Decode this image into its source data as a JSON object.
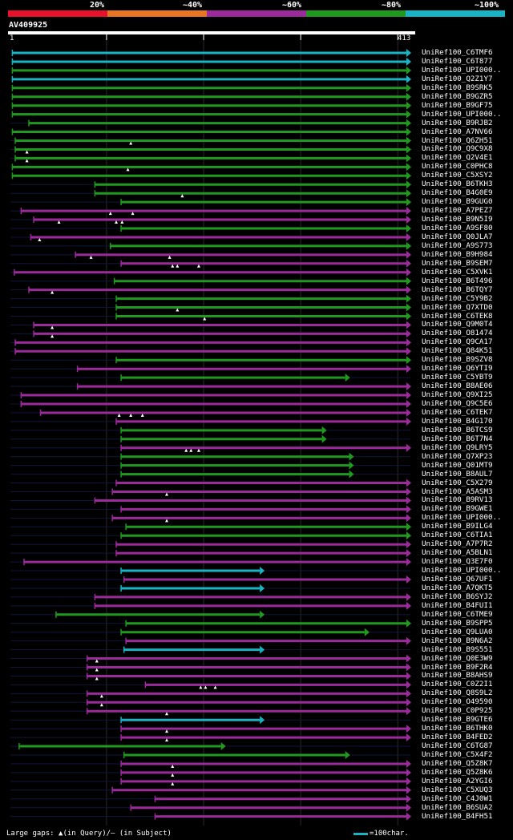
{
  "legend": {
    "labels": [
      "20%",
      "~40%",
      "~60%",
      "~80%",
      "~100%"
    ],
    "colors": [
      "#e8102a",
      "#e87424",
      "#9b2a9b",
      "#1f9a1f",
      "#18b4c4"
    ]
  },
  "query": {
    "title": "AV409925",
    "start": "1",
    "end": "413",
    "length": 413
  },
  "colors": {
    "cyan": "#18b4c4",
    "green": "#1f9a1f",
    "purple": "#9b2a9b",
    "gap": "#ffffff"
  },
  "footer": {
    "gaps_text": "Large gaps: ▲(in Query)/— (in Subject)",
    "scale_text": "=100char."
  },
  "hits": [
    {
      "name": "UniRef100_C6TMF6",
      "color": "cyan",
      "start": 3,
      "end": 413,
      "gaps": []
    },
    {
      "name": "UniRef100_C6T877",
      "color": "cyan",
      "start": 3,
      "end": 413,
      "gaps": []
    },
    {
      "name": "UniRef100_UPI000..",
      "color": "green",
      "start": 3,
      "end": 413,
      "gaps": []
    },
    {
      "name": "UniRef100_Q2Z1Y7",
      "color": "cyan",
      "start": 3,
      "end": 413,
      "gaps": []
    },
    {
      "name": "UniRef100_B9SRK5",
      "color": "green",
      "start": 3,
      "end": 413,
      "gaps": []
    },
    {
      "name": "UniRef100_B9GZR5",
      "color": "green",
      "start": 3,
      "end": 413,
      "gaps": []
    },
    {
      "name": "UniRef100_B9GF75",
      "color": "green",
      "start": 3,
      "end": 413,
      "gaps": []
    },
    {
      "name": "UniRef100_UPI000..",
      "color": "green",
      "start": 3,
      "end": 413,
      "gaps": []
    },
    {
      "name": "UniRef100_B9RJB2",
      "color": "green",
      "start": 20,
      "end": 413,
      "gaps": []
    },
    {
      "name": "UniRef100_A7NV66",
      "color": "green",
      "start": 3,
      "end": 413,
      "gaps": []
    },
    {
      "name": "UniRef100_Q6ZH51",
      "color": "green",
      "start": 6,
      "end": 413,
      "gaps": [
        125
      ]
    },
    {
      "name": "UniRef100_Q9C9X8",
      "color": "green",
      "start": 6,
      "end": 413,
      "gaps": [
        18
      ]
    },
    {
      "name": "UniRef100_Q2V4E1",
      "color": "green",
      "start": 6,
      "end": 413,
      "gaps": [
        18
      ]
    },
    {
      "name": "UniRef100_C0PHC8",
      "color": "green",
      "start": 3,
      "end": 413,
      "gaps": [
        122
      ]
    },
    {
      "name": "UniRef100_C5XSY2",
      "color": "green",
      "start": 3,
      "end": 413,
      "gaps": []
    },
    {
      "name": "UniRef100_B6TKH3",
      "color": "green",
      "start": 88,
      "end": 413,
      "gaps": []
    },
    {
      "name": "UniRef100_B4G0E9",
      "color": "green",
      "start": 88,
      "end": 413,
      "gaps": [
        178
      ]
    },
    {
      "name": "UniRef100_B9GUG0",
      "color": "green",
      "start": 115,
      "end": 413,
      "gaps": []
    },
    {
      "name": "UniRef100_A7PEZ7",
      "color": "purple",
      "start": 12,
      "end": 413,
      "gaps": [
        104,
        127
      ]
    },
    {
      "name": "UniRef100_B9N5I9",
      "color": "purple",
      "start": 25,
      "end": 413,
      "gaps": [
        51,
        110,
        116
      ]
    },
    {
      "name": "UniRef100_A9SF80",
      "color": "green",
      "start": 115,
      "end": 413,
      "gaps": []
    },
    {
      "name": "UniRef100_Q0JLA7",
      "color": "purple",
      "start": 22,
      "end": 413,
      "gaps": [
        31
      ]
    },
    {
      "name": "UniRef100_A9S773",
      "color": "green",
      "start": 104,
      "end": 413,
      "gaps": []
    },
    {
      "name": "UniRef100_B9H984",
      "color": "purple",
      "start": 68,
      "end": 413,
      "gaps": [
        84,
        165
      ]
    },
    {
      "name": "UniRef100_B9SEM7",
      "color": "purple",
      "start": 115,
      "end": 413,
      "gaps": [
        168,
        173,
        195
      ]
    },
    {
      "name": "UniRef100_C5XVK1",
      "color": "purple",
      "start": 5,
      "end": 413,
      "gaps": []
    },
    {
      "name": "UniRef100_B6T496",
      "color": "green",
      "start": 108,
      "end": 413,
      "gaps": []
    },
    {
      "name": "UniRef100_B6TQY7",
      "color": "purple",
      "start": 20,
      "end": 413,
      "gaps": [
        44
      ]
    },
    {
      "name": "UniRef100_C5Y9B2",
      "color": "green",
      "start": 110,
      "end": 413,
      "gaps": []
    },
    {
      "name": "UniRef100_Q7XTD0",
      "color": "green",
      "start": 110,
      "end": 413,
      "gaps": [
        173
      ]
    },
    {
      "name": "UniRef100_C6TEK8",
      "color": "green",
      "start": 110,
      "end": 413,
      "gaps": [
        201
      ]
    },
    {
      "name": "UniRef100_Q9M0T4",
      "color": "purple",
      "start": 25,
      "end": 413,
      "gaps": [
        44
      ]
    },
    {
      "name": "UniRef100_O81474",
      "color": "purple",
      "start": 25,
      "end": 413,
      "gaps": [
        44
      ]
    },
    {
      "name": "UniRef100_Q9CA17",
      "color": "purple",
      "start": 6,
      "end": 413,
      "gaps": []
    },
    {
      "name": "UniRef100_Q84K51",
      "color": "purple",
      "start": 6,
      "end": 413,
      "gaps": []
    },
    {
      "name": "UniRef100_B9SZV8",
      "color": "green",
      "start": 110,
      "end": 413,
      "gaps": []
    },
    {
      "name": "UniRef100_Q6YTI9",
      "color": "purple",
      "start": 70,
      "end": 413,
      "gaps": []
    },
    {
      "name": "UniRef100_C5YBT9",
      "color": "green",
      "start": 115,
      "end": 350,
      "gaps": []
    },
    {
      "name": "UniRef100_B8AE06",
      "color": "purple",
      "start": 70,
      "end": 413,
      "gaps": []
    },
    {
      "name": "UniRef100_Q9XI25",
      "color": "purple",
      "start": 12,
      "end": 413,
      "gaps": []
    },
    {
      "name": "UniRef100_Q9C5E6",
      "color": "purple",
      "start": 12,
      "end": 413,
      "gaps": []
    },
    {
      "name": "UniRef100_C6TEK7",
      "color": "purple",
      "start": 32,
      "end": 413,
      "gaps": [
        113,
        125,
        137
      ]
    },
    {
      "name": "UniRef100_B4G170",
      "color": "purple",
      "start": 110,
      "end": 413,
      "gaps": []
    },
    {
      "name": "UniRef100_B6TCS9",
      "color": "green",
      "start": 115,
      "end": 326,
      "gaps": []
    },
    {
      "name": "UniRef100_B6T7N4",
      "color": "green",
      "start": 115,
      "end": 326,
      "gaps": []
    },
    {
      "name": "UniRef100_Q9LRY5",
      "color": "purple",
      "start": 115,
      "end": 413,
      "gaps": [
        182,
        187,
        195
      ]
    },
    {
      "name": "UniRef100_Q7XP23",
      "color": "green",
      "start": 115,
      "end": 354,
      "gaps": []
    },
    {
      "name": "UniRef100_Q01MT9",
      "color": "green",
      "start": 115,
      "end": 354,
      "gaps": []
    },
    {
      "name": "UniRef100_B8AUL7",
      "color": "green",
      "start": 115,
      "end": 354,
      "gaps": []
    },
    {
      "name": "UniRef100_C5X279",
      "color": "purple",
      "start": 110,
      "end": 413,
      "gaps": []
    },
    {
      "name": "UniRef100_A5ASM3",
      "color": "purple",
      "start": 106,
      "end": 413,
      "gaps": [
        162
      ]
    },
    {
      "name": "UniRef100_B9RV13",
      "color": "purple",
      "start": 88,
      "end": 413,
      "gaps": []
    },
    {
      "name": "UniRef100_B9GWE1",
      "color": "purple",
      "start": 115,
      "end": 413,
      "gaps": []
    },
    {
      "name": "UniRef100_UPI000..",
      "color": "purple",
      "start": 106,
      "end": 413,
      "gaps": [
        162
      ]
    },
    {
      "name": "UniRef100_B9ILG4",
      "color": "green",
      "start": 120,
      "end": 413,
      "gaps": []
    },
    {
      "name": "UniRef100_C6TIA1",
      "color": "green",
      "start": 115,
      "end": 413,
      "gaps": []
    },
    {
      "name": "UniRef100_A7P7R2",
      "color": "purple",
      "start": 110,
      "end": 413,
      "gaps": []
    },
    {
      "name": "UniRef100_A5BLN1",
      "color": "purple",
      "start": 110,
      "end": 413,
      "gaps": []
    },
    {
      "name": "UniRef100_Q3E7F0",
      "color": "purple",
      "start": 15,
      "end": 413,
      "gaps": []
    },
    {
      "name": "UniRef100_UPI000..",
      "color": "cyan",
      "start": 115,
      "end": 262,
      "gaps": []
    },
    {
      "name": "UniRef100_Q67UF1",
      "color": "purple",
      "start": 118,
      "end": 413,
      "gaps": []
    },
    {
      "name": "UniRef100_A7QKT5",
      "color": "cyan",
      "start": 115,
      "end": 262,
      "gaps": []
    },
    {
      "name": "UniRef100_B6SYJ2",
      "color": "purple",
      "start": 88,
      "end": 413,
      "gaps": []
    },
    {
      "name": "UniRef100_B4FUI1",
      "color": "purple",
      "start": 88,
      "end": 413,
      "gaps": []
    },
    {
      "name": "UniRef100_C6TME9",
      "color": "green",
      "start": 48,
      "end": 262,
      "gaps": []
    },
    {
      "name": "UniRef100_B9SPP5",
      "color": "green",
      "start": 120,
      "end": 413,
      "gaps": []
    },
    {
      "name": "UniRef100_Q9LUA0",
      "color": "green",
      "start": 115,
      "end": 370,
      "gaps": []
    },
    {
      "name": "UniRef100_B9N6A2",
      "color": "purple",
      "start": 120,
      "end": 413,
      "gaps": []
    },
    {
      "name": "UniRef100_B9S551",
      "color": "cyan",
      "start": 118,
      "end": 262,
      "gaps": []
    },
    {
      "name": "UniRef100_Q0E3W9",
      "color": "purple",
      "start": 80,
      "end": 413,
      "gaps": [
        90
      ]
    },
    {
      "name": "UniRef100_B9F2R4",
      "color": "purple",
      "start": 80,
      "end": 413,
      "gaps": [
        90
      ]
    },
    {
      "name": "UniRef100_B8AHS9",
      "color": "purple",
      "start": 80,
      "end": 413,
      "gaps": [
        90
      ]
    },
    {
      "name": "UniRef100_C0Z2I1",
      "color": "purple",
      "start": 140,
      "end": 413,
      "gaps": [
        197,
        202,
        212
      ]
    },
    {
      "name": "UniRef100_Q8S9L2",
      "color": "purple",
      "start": 80,
      "end": 413,
      "gaps": [
        95
      ]
    },
    {
      "name": "UniRef100_O49590",
      "color": "purple",
      "start": 80,
      "end": 413,
      "gaps": [
        95
      ]
    },
    {
      "name": "UniRef100_C0P925",
      "color": "purple",
      "start": 80,
      "end": 413,
      "gaps": [
        162
      ]
    },
    {
      "name": "UniRef100_B9GTE6",
      "color": "cyan",
      "start": 115,
      "end": 262,
      "gaps": []
    },
    {
      "name": "UniRef100_B6THK0",
      "color": "purple",
      "start": 115,
      "end": 413,
      "gaps": [
        162
      ]
    },
    {
      "name": "UniRef100_B4FED2",
      "color": "purple",
      "start": 115,
      "end": 413,
      "gaps": [
        162
      ]
    },
    {
      "name": "UniRef100_C6TG87",
      "color": "green",
      "start": 10,
      "end": 222,
      "gaps": []
    },
    {
      "name": "UniRef100_C5X4F2",
      "color": "green",
      "start": 118,
      "end": 350,
      "gaps": []
    },
    {
      "name": "UniRef100_Q5Z8K7",
      "color": "purple",
      "start": 115,
      "end": 413,
      "gaps": [
        168
      ]
    },
    {
      "name": "UniRef100_Q5Z8K6",
      "color": "purple",
      "start": 115,
      "end": 413,
      "gaps": [
        168
      ]
    },
    {
      "name": "UniRef100_A2YGI6",
      "color": "purple",
      "start": 115,
      "end": 413,
      "gaps": [
        168
      ]
    },
    {
      "name": "UniRef100_C5XUQ3",
      "color": "purple",
      "start": 106,
      "end": 413,
      "gaps": []
    },
    {
      "name": "UniRef100_C4J0W1",
      "color": "purple",
      "start": 150,
      "end": 413,
      "gaps": []
    },
    {
      "name": "UniRef100_B6SUA2",
      "color": "purple",
      "start": 125,
      "end": 413,
      "gaps": []
    },
    {
      "name": "UniRef100_B4FH51",
      "color": "purple",
      "start": 150,
      "end": 413,
      "gaps": []
    }
  ]
}
